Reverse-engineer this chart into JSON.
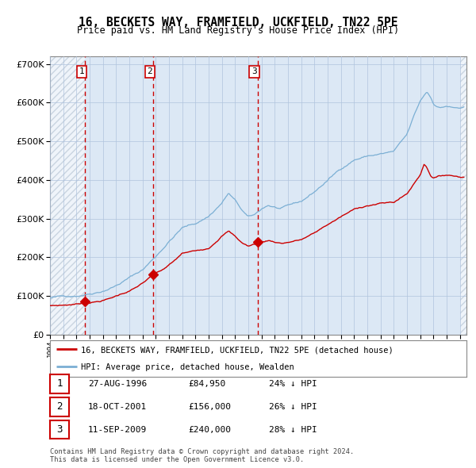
{
  "title": "16, BECKETS WAY, FRAMFIELD, UCKFIELD, TN22 5PE",
  "subtitle": "Price paid vs. HM Land Registry's House Price Index (HPI)",
  "xlim": [
    1994.0,
    2025.5
  ],
  "ylim": [
    0,
    720000
  ],
  "yticks": [
    0,
    100000,
    200000,
    300000,
    400000,
    500000,
    600000,
    700000
  ],
  "transactions": [
    {
      "label": "1",
      "date": "27-AUG-1996",
      "price": 84950,
      "pct": "24%",
      "year": 1996.65
    },
    {
      "label": "2",
      "date": "18-OCT-2001",
      "price": 156000,
      "pct": "26%",
      "year": 2001.79
    },
    {
      "label": "3",
      "date": "11-SEP-2009",
      "price": 240000,
      "pct": "28%",
      "year": 2009.7
    }
  ],
  "legend_property": "16, BECKETS WAY, FRAMFIELD, UCKFIELD, TN22 5PE (detached house)",
  "legend_hpi": "HPI: Average price, detached house, Wealden",
  "footnote": "Contains HM Land Registry data © Crown copyright and database right 2024.\nThis data is licensed under the Open Government Licence v3.0.",
  "property_color": "#cc0000",
  "hpi_color": "#7bafd4",
  "background_chart": "#dce8f5",
  "grid_color": "#b0c4de",
  "vline_color": "#cc0000"
}
